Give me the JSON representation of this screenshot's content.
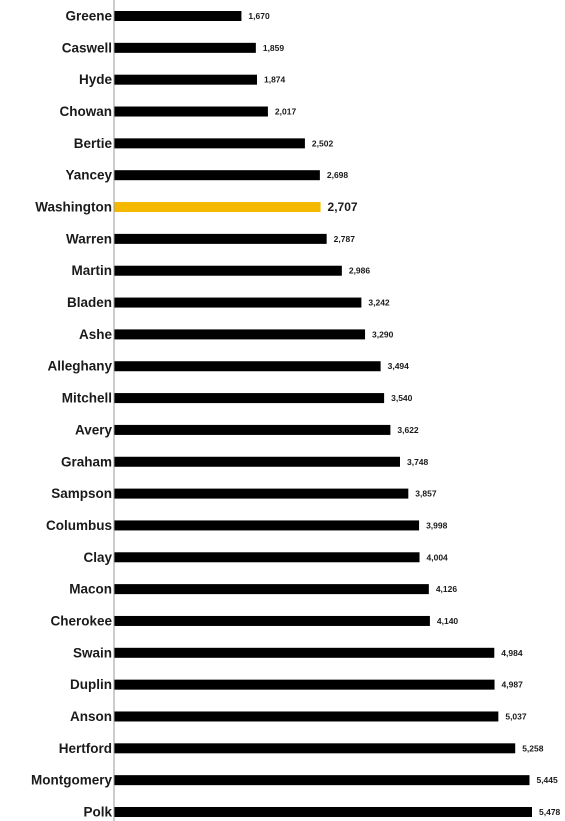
{
  "chart_data": {
    "type": "bar",
    "orientation": "horizontal",
    "title": "",
    "xlabel": "",
    "ylabel": "",
    "grid": false,
    "legend": "none",
    "categories": [
      "Greene",
      "Caswell",
      "Hyde",
      "Chowan",
      "Bertie",
      "Yancey",
      "Washington",
      "Warren",
      "Martin",
      "Bladen",
      "Ashe",
      "Alleghany",
      "Mitchell",
      "Avery",
      "Graham",
      "Sampson",
      "Columbus",
      "Clay",
      "Macon",
      "Cherokee",
      "Swain",
      "Duplin",
      "Anson",
      "Hertford",
      "Montgomery",
      "Polk"
    ],
    "values": [
      1670,
      1859,
      1874,
      2017,
      2502,
      2698,
      2707,
      2787,
      2986,
      3242,
      3290,
      3494,
      3540,
      3622,
      3748,
      3857,
      3998,
      4004,
      4126,
      4140,
      4984,
      4987,
      5037,
      5258,
      5445,
      5478
    ],
    "value_labels": [
      "1,670",
      "1,859",
      "1,874",
      "2,017",
      "2,502",
      "2,698",
      "2,707",
      "2,787",
      "2,986",
      "3,242",
      "3,290",
      "3,494",
      "3,540",
      "3,622",
      "3,748",
      "3,857",
      "3,998",
      "4,004",
      "4,126",
      "4,140",
      "4,984",
      "4,987",
      "5,037",
      "5,258",
      "5,445",
      "5,478"
    ],
    "highlight": "Washington",
    "colors": {
      "bar": "#000000",
      "highlight": "#f5b800",
      "axis": "#999999",
      "text": "#1a1a1a"
    }
  }
}
